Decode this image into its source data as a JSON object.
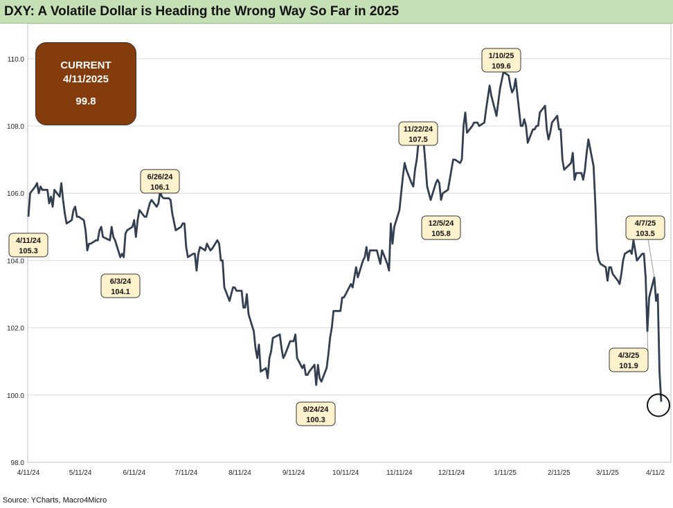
{
  "header": {
    "title": "DXY: A Volatile Dollar is Heading the Wrong Way So Far in 2025"
  },
  "current_box": {
    "line1": "CURRENT",
    "line2": "4/11/2025",
    "line3": "99.8"
  },
  "footer": {
    "source": "Source: YCharts, Macro4Micro"
  },
  "colors": {
    "title_bg": "#c5e0b4",
    "line": "#333f50",
    "callout_bg": "#fff2cc",
    "current_bg": "#843c0c",
    "grid": "#d9d9d9"
  },
  "chart_data": {
    "type": "line",
    "title": "DXY: A Volatile Dollar is Heading the Wrong Way So Far in 2025",
    "xlabel": "",
    "ylabel": "",
    "ylim": [
      98,
      111
    ],
    "yticks": [
      "98.0",
      "100.0",
      "102.0",
      "104.0",
      "106.0",
      "108.0",
      "110.0"
    ],
    "xlim": [
      "2024-04-11",
      "2025-04-11"
    ],
    "xticks": [
      "4/11/24",
      "5/11/24",
      "6/11/24",
      "7/11/24",
      "8/11/24",
      "9/11/24",
      "10/11/24",
      "11/11/24",
      "12/11/24",
      "1/11/25",
      "2/11/25",
      "3/11/25",
      "4/11/2"
    ],
    "grid": "horizontal",
    "series": [
      {
        "points": [
          [
            "2024-04-11",
            105.3
          ],
          [
            "2024-04-12",
            106.0
          ],
          [
            "2024-04-15",
            106.2
          ],
          [
            "2024-04-16",
            106.3
          ],
          [
            "2024-04-17",
            106.0
          ],
          [
            "2024-04-18",
            106.2
          ],
          [
            "2024-04-19",
            106.1
          ],
          [
            "2024-04-22",
            106.1
          ],
          [
            "2024-04-23",
            105.7
          ],
          [
            "2024-04-24",
            105.9
          ],
          [
            "2024-04-25",
            105.6
          ],
          [
            "2024-04-26",
            106.1
          ],
          [
            "2024-04-29",
            105.9
          ],
          [
            "2024-04-30",
            106.3
          ],
          [
            "2024-05-01",
            105.8
          ],
          [
            "2024-05-02",
            105.4
          ],
          [
            "2024-05-03",
            105.1
          ],
          [
            "2024-05-06",
            105.2
          ],
          [
            "2024-05-07",
            105.5
          ],
          [
            "2024-05-08",
            105.6
          ],
          [
            "2024-05-09",
            105.3
          ],
          [
            "2024-05-10",
            105.3
          ],
          [
            "2024-05-13",
            105.2
          ],
          [
            "2024-05-14",
            104.9
          ],
          [
            "2024-05-15",
            104.3
          ],
          [
            "2024-05-16",
            104.5
          ],
          [
            "2024-05-17",
            104.5
          ],
          [
            "2024-05-20",
            104.6
          ],
          [
            "2024-05-21",
            104.6
          ],
          [
            "2024-05-22",
            104.9
          ],
          [
            "2024-05-23",
            105.0
          ],
          [
            "2024-05-24",
            104.7
          ],
          [
            "2024-05-28",
            104.6
          ],
          [
            "2024-05-29",
            105.0
          ],
          [
            "2024-05-30",
            104.7
          ],
          [
            "2024-05-31",
            104.6
          ],
          [
            "2024-06-03",
            104.1
          ],
          [
            "2024-06-04",
            104.2
          ],
          [
            "2024-06-05",
            104.1
          ],
          [
            "2024-06-06",
            104.8
          ],
          [
            "2024-06-07",
            104.9
          ],
          [
            "2024-06-10",
            105.0
          ],
          [
            "2024-06-11",
            105.2
          ],
          [
            "2024-06-12",
            104.7
          ],
          [
            "2024-06-13",
            105.2
          ],
          [
            "2024-06-14",
            105.5
          ],
          [
            "2024-06-17",
            105.3
          ],
          [
            "2024-06-18",
            105.3
          ],
          [
            "2024-06-19",
            105.5
          ],
          [
            "2024-06-20",
            105.7
          ],
          [
            "2024-06-21",
            105.8
          ],
          [
            "2024-06-24",
            105.6
          ],
          [
            "2024-06-25",
            105.7
          ],
          [
            "2024-06-26",
            106.05
          ],
          [
            "2024-06-27",
            105.9
          ],
          [
            "2024-06-28",
            105.85
          ],
          [
            "2024-07-01",
            105.85
          ],
          [
            "2024-07-02",
            105.8
          ],
          [
            "2024-07-03",
            105.4
          ],
          [
            "2024-07-05",
            104.9
          ],
          [
            "2024-07-08",
            105.0
          ],
          [
            "2024-07-09",
            105.1
          ],
          [
            "2024-07-10",
            105.1
          ],
          [
            "2024-07-11",
            104.4
          ],
          [
            "2024-07-12",
            104.1
          ],
          [
            "2024-07-15",
            104.2
          ],
          [
            "2024-07-16",
            104.2
          ],
          [
            "2024-07-17",
            103.7
          ],
          [
            "2024-07-18",
            104.2
          ],
          [
            "2024-07-19",
            104.4
          ],
          [
            "2024-07-22",
            104.3
          ],
          [
            "2024-07-23",
            104.5
          ],
          [
            "2024-07-24",
            104.4
          ],
          [
            "2024-07-25",
            104.3
          ],
          [
            "2024-07-26",
            104.35
          ],
          [
            "2024-07-29",
            104.6
          ],
          [
            "2024-07-30",
            104.5
          ],
          [
            "2024-07-31",
            104.0
          ],
          [
            "2024-08-01",
            104.0
          ],
          [
            "2024-08-02",
            103.2
          ],
          [
            "2024-08-05",
            102.8
          ],
          [
            "2024-08-06",
            103.0
          ],
          [
            "2024-08-07",
            103.2
          ],
          [
            "2024-08-08",
            103.2
          ],
          [
            "2024-08-09",
            103.1
          ],
          [
            "2024-08-12",
            103.1
          ],
          [
            "2024-08-13",
            102.6
          ],
          [
            "2024-08-14",
            102.6
          ],
          [
            "2024-08-15",
            103.0
          ],
          [
            "2024-08-16",
            102.4
          ],
          [
            "2024-08-19",
            101.9
          ],
          [
            "2024-08-20",
            101.4
          ],
          [
            "2024-08-21",
            101.1
          ],
          [
            "2024-08-22",
            101.5
          ],
          [
            "2024-08-23",
            100.7
          ],
          [
            "2024-08-26",
            100.8
          ],
          [
            "2024-08-27",
            100.5
          ],
          [
            "2024-08-28",
            101.1
          ],
          [
            "2024-08-29",
            101.3
          ],
          [
            "2024-08-30",
            101.7
          ],
          [
            "2024-09-03",
            101.8
          ],
          [
            "2024-09-04",
            101.4
          ],
          [
            "2024-09-05",
            101.1
          ],
          [
            "2024-09-06",
            101.2
          ],
          [
            "2024-09-09",
            101.6
          ],
          [
            "2024-09-10",
            101.6
          ],
          [
            "2024-09-11",
            101.6
          ],
          [
            "2024-09-12",
            101.8
          ],
          [
            "2024-09-13",
            101.1
          ],
          [
            "2024-09-16",
            100.8
          ],
          [
            "2024-09-17",
            100.9
          ],
          [
            "2024-09-18",
            100.6
          ],
          [
            "2024-09-19",
            100.6
          ],
          [
            "2024-09-20",
            100.7
          ],
          [
            "2024-09-23",
            100.9
          ],
          [
            "2024-09-24",
            100.3
          ],
          [
            "2024-09-25",
            100.9
          ],
          [
            "2024-09-26",
            100.5
          ],
          [
            "2024-09-27",
            100.4
          ],
          [
            "2024-09-30",
            100.8
          ],
          [
            "2024-10-01",
            101.2
          ],
          [
            "2024-10-02",
            101.7
          ],
          [
            "2024-10-03",
            102.0
          ],
          [
            "2024-10-04",
            102.5
          ],
          [
            "2024-10-07",
            102.5
          ],
          [
            "2024-10-08",
            102.5
          ],
          [
            "2024-10-09",
            102.9
          ],
          [
            "2024-10-10",
            102.9
          ],
          [
            "2024-10-11",
            103.0
          ],
          [
            "2024-10-14",
            103.3
          ],
          [
            "2024-10-15",
            103.2
          ],
          [
            "2024-10-16",
            103.5
          ],
          [
            "2024-10-17",
            103.8
          ],
          [
            "2024-10-18",
            103.5
          ],
          [
            "2024-10-21",
            104.0
          ],
          [
            "2024-10-22",
            104.1
          ],
          [
            "2024-10-23",
            104.4
          ],
          [
            "2024-10-24",
            104.0
          ],
          [
            "2024-10-25",
            104.3
          ],
          [
            "2024-10-28",
            104.3
          ],
          [
            "2024-10-29",
            104.3
          ],
          [
            "2024-10-30",
            104.1
          ],
          [
            "2024-10-31",
            103.9
          ],
          [
            "2024-11-01",
            104.3
          ],
          [
            "2024-11-04",
            103.9
          ],
          [
            "2024-11-05",
            103.7
          ],
          [
            "2024-11-06",
            105.1
          ],
          [
            "2024-11-07",
            104.5
          ],
          [
            "2024-11-08",
            105.0
          ],
          [
            "2024-11-11",
            105.5
          ],
          [
            "2024-11-12",
            106.0
          ],
          [
            "2024-11-13",
            106.5
          ],
          [
            "2024-11-14",
            106.9
          ],
          [
            "2024-11-15",
            106.7
          ],
          [
            "2024-11-18",
            106.3
          ],
          [
            "2024-11-19",
            106.2
          ],
          [
            "2024-11-20",
            106.7
          ],
          [
            "2024-11-21",
            107.0
          ],
          [
            "2024-11-22",
            107.5
          ],
          [
            "2024-11-25",
            107.5
          ],
          [
            "2024-11-26",
            106.9
          ],
          [
            "2024-11-27",
            106.2
          ],
          [
            "2024-11-29",
            105.8
          ],
          [
            "2024-12-02",
            106.3
          ],
          [
            "2024-12-03",
            106.4
          ],
          [
            "2024-12-04",
            106.3
          ],
          [
            "2024-12-05",
            105.8
          ],
          [
            "2024-12-06",
            106.0
          ],
          [
            "2024-12-09",
            106.1
          ],
          [
            "2024-12-10",
            106.4
          ],
          [
            "2024-12-11",
            106.7
          ],
          [
            "2024-12-12",
            107.0
          ],
          [
            "2024-12-13",
            107.0
          ],
          [
            "2024-12-16",
            106.9
          ],
          [
            "2024-12-17",
            107.0
          ],
          [
            "2024-12-18",
            108.0
          ],
          [
            "2024-12-19",
            108.4
          ],
          [
            "2024-12-20",
            107.8
          ],
          [
            "2024-12-23",
            108.0
          ],
          [
            "2024-12-24",
            108.1
          ],
          [
            "2024-12-26",
            108.1
          ],
          [
            "2024-12-27",
            108.0
          ],
          [
            "2024-12-30",
            108.1
          ],
          [
            "2024-12-31",
            108.5
          ],
          [
            "2025-01-02",
            109.2
          ],
          [
            "2025-01-03",
            108.9
          ],
          [
            "2025-01-06",
            108.3
          ],
          [
            "2025-01-07",
            108.7
          ],
          [
            "2025-01-08",
            109.1
          ],
          [
            "2025-01-10",
            109.6
          ],
          [
            "2025-01-13",
            109.5
          ],
          [
            "2025-01-14",
            109.2
          ],
          [
            "2025-01-15",
            109.0
          ],
          [
            "2025-01-16",
            109.1
          ],
          [
            "2025-01-17",
            109.4
          ],
          [
            "2025-01-20",
            108.0
          ],
          [
            "2025-01-21",
            108.0
          ],
          [
            "2025-01-22",
            108.2
          ],
          [
            "2025-01-23",
            108.0
          ],
          [
            "2025-01-24",
            107.5
          ],
          [
            "2025-01-27",
            107.9
          ],
          [
            "2025-01-28",
            107.9
          ],
          [
            "2025-01-29",
            108.0
          ],
          [
            "2025-01-30",
            108.0
          ],
          [
            "2025-01-31",
            108.4
          ],
          [
            "2025-02-03",
            108.6
          ],
          [
            "2025-02-04",
            107.9
          ],
          [
            "2025-02-05",
            107.6
          ],
          [
            "2025-02-06",
            107.8
          ],
          [
            "2025-02-07",
            108.1
          ],
          [
            "2025-02-10",
            108.3
          ],
          [
            "2025-02-11",
            107.9
          ],
          [
            "2025-02-12",
            107.9
          ],
          [
            "2025-02-13",
            107.0
          ],
          [
            "2025-02-14",
            106.7
          ],
          [
            "2025-02-18",
            106.9
          ],
          [
            "2025-02-19",
            107.2
          ],
          [
            "2025-02-20",
            106.4
          ],
          [
            "2025-02-21",
            106.6
          ],
          [
            "2025-02-24",
            106.6
          ],
          [
            "2025-02-25",
            106.4
          ],
          [
            "2025-02-26",
            106.7
          ],
          [
            "2025-02-27",
            107.2
          ],
          [
            "2025-02-28",
            107.6
          ],
          [
            "2025-03-03",
            106.8
          ],
          [
            "2025-03-04",
            105.7
          ],
          [
            "2025-03-05",
            104.3
          ],
          [
            "2025-03-06",
            104.0
          ],
          [
            "2025-03-07",
            103.9
          ],
          [
            "2025-03-10",
            103.8
          ],
          [
            "2025-03-11",
            103.4
          ],
          [
            "2025-03-12",
            103.8
          ],
          [
            "2025-03-13",
            103.8
          ],
          [
            "2025-03-14",
            103.6
          ],
          [
            "2025-03-17",
            103.4
          ],
          [
            "2025-03-18",
            103.3
          ],
          [
            "2025-03-19",
            103.6
          ],
          [
            "2025-03-20",
            104.0
          ],
          [
            "2025-03-21",
            104.2
          ],
          [
            "2025-03-24",
            104.3
          ],
          [
            "2025-03-25",
            104.2
          ],
          [
            "2025-03-26",
            104.6
          ],
          [
            "2025-03-27",
            104.3
          ],
          [
            "2025-03-28",
            104.0
          ],
          [
            "2025-03-31",
            104.2
          ],
          [
            "2025-04-01",
            104.2
          ],
          [
            "2025-04-02",
            103.5
          ],
          [
            "2025-04-03",
            101.9
          ],
          [
            "2025-04-04",
            102.9
          ],
          [
            "2025-04-07",
            103.5
          ],
          [
            "2025-04-08",
            102.8
          ],
          [
            "2025-04-09",
            103.0
          ],
          [
            "2025-04-10",
            100.7
          ],
          [
            "2025-04-11",
            99.8
          ]
        ]
      }
    ],
    "annotations": [
      {
        "label": "4/11/24",
        "value": "105.3",
        "date": "2024-04-11",
        "y": 105.3
      },
      {
        "label": "6/3/24",
        "value": "104.1",
        "date": "2024-06-03",
        "y": 104.1
      },
      {
        "label": "6/26/24",
        "value": "106.1",
        "date": "2024-06-26",
        "y": 106.05
      },
      {
        "label": "9/24/24",
        "value": "100.3",
        "date": "2024-09-24",
        "y": 100.3
      },
      {
        "label": "11/22/24",
        "value": "107.5",
        "date": "2024-11-22",
        "y": 107.5
      },
      {
        "label": "12/5/24",
        "value": "105.8",
        "date": "2024-12-05",
        "y": 105.8
      },
      {
        "label": "1/10/25",
        "value": "109.6",
        "date": "2025-01-10",
        "y": 109.6
      },
      {
        "label": "4/7/25",
        "value": "103.5",
        "date": "2025-04-07",
        "y": 103.5
      },
      {
        "label": "4/3/25",
        "value": "101.9",
        "date": "2025-04-03",
        "y": 101.9
      }
    ]
  }
}
